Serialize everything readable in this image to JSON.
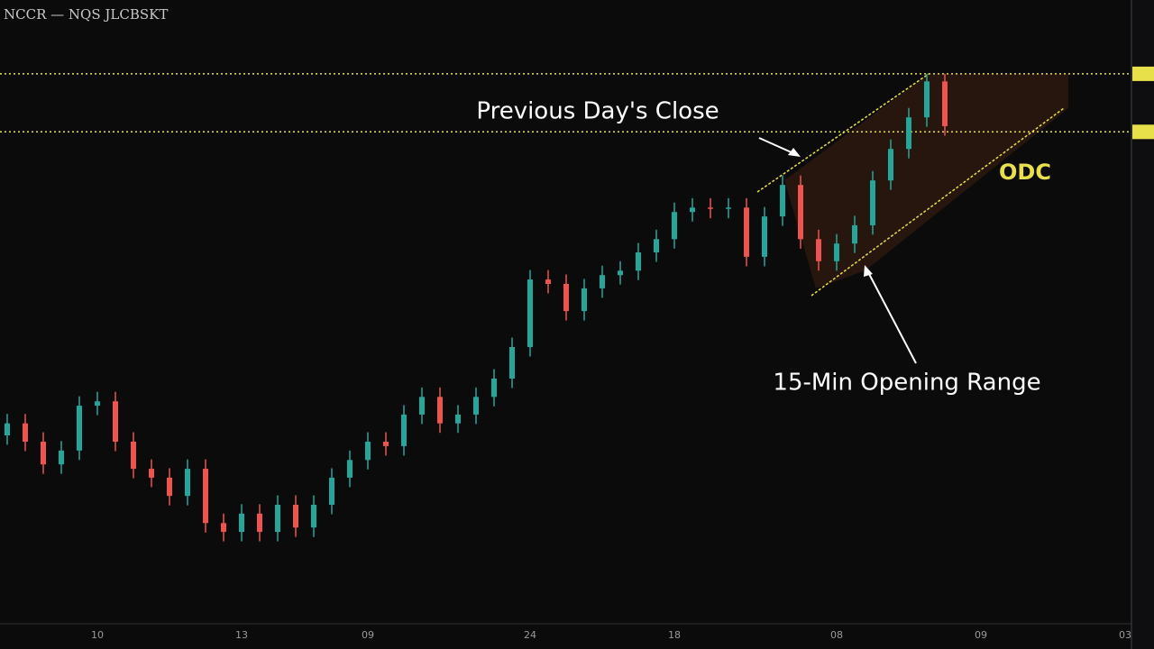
{
  "chart_data": {
    "type": "candlestick",
    "title": "NCCR — NQS JLCBSKT",
    "annotations": [
      "Previous Day's Close",
      "15-Min Opening Range",
      "ODC"
    ],
    "categories": [
      null,
      null,
      null,
      null,
      null,
      "10",
      null,
      null,
      null,
      null,
      null,
      null,
      null,
      "13",
      null,
      null,
      null,
      null,
      null,
      null,
      "09",
      null,
      null,
      null,
      null,
      null,
      null,
      null,
      null,
      "24",
      null,
      null,
      null,
      null,
      null,
      null,
      null,
      "18",
      null,
      null,
      null,
      null,
      null,
      null,
      null,
      null,
      "08",
      null,
      null,
      null,
      null,
      null,
      null,
      null,
      "09",
      null,
      null,
      null,
      null,
      null,
      null,
      null,
      "03"
    ],
    "open": [
      31.0,
      32.9,
      30.0,
      26.4,
      28.6,
      35.7,
      36.4,
      30.0,
      25.7,
      24.3,
      21.4,
      25.7,
      17.1,
      15.7,
      18.6,
      15.7,
      20.0,
      16.4,
      20.0,
      24.3,
      27.1,
      30.0,
      29.3,
      34.3,
      37.1,
      32.9,
      34.3,
      37.1,
      40.0,
      45.0,
      55.7,
      55.0,
      50.7,
      54.3,
      56.4,
      57.1,
      60.0,
      62.1,
      66.4,
      67.1,
      66.9,
      67.1,
      59.3,
      65.7,
      70.7,
      62.1,
      58.6,
      61.4,
      64.3,
      71.4,
      76.4,
      81.4,
      87.1,
      null,
      null,
      null,
      null,
      null,
      null,
      null,
      null,
      null,
      null
    ],
    "high": [
      34.4,
      34.4,
      31.5,
      30.1,
      37.2,
      37.9,
      37.9,
      31.5,
      27.2,
      25.8,
      27.2,
      27.2,
      18.6,
      20.1,
      20.1,
      21.5,
      21.5,
      21.5,
      25.8,
      28.6,
      31.5,
      31.5,
      35.8,
      38.6,
      38.6,
      35.8,
      38.6,
      41.5,
      46.5,
      57.2,
      57.2,
      56.5,
      55.8,
      57.9,
      58.6,
      61.5,
      63.6,
      67.9,
      68.6,
      68.6,
      68.6,
      68.6,
      67.2,
      72.2,
      72.2,
      63.6,
      62.9,
      65.8,
      72.9,
      77.9,
      82.9,
      88.3,
      88.3,
      null,
      null,
      null,
      null,
      null,
      null,
      null,
      null,
      null,
      null
    ],
    "low": [
      29.5,
      28.5,
      24.9,
      24.9,
      27.1,
      34.2,
      28.5,
      24.2,
      22.8,
      19.9,
      19.9,
      15.6,
      14.2,
      14.2,
      14.2,
      14.2,
      14.9,
      14.9,
      18.5,
      22.8,
      25.6,
      27.8,
      27.8,
      32.8,
      31.4,
      31.4,
      32.8,
      35.6,
      38.5,
      43.5,
      53.5,
      49.2,
      49.2,
      52.8,
      54.9,
      55.6,
      58.5,
      60.6,
      64.9,
      65.4,
      65.4,
      57.8,
      57.8,
      64.2,
      60.6,
      57.1,
      57.1,
      59.9,
      62.8,
      69.9,
      74.9,
      79.9,
      78.5,
      null,
      null,
      null,
      null,
      null,
      null,
      null,
      null,
      null,
      null
    ],
    "close": [
      32.9,
      30.0,
      26.4,
      28.6,
      35.7,
      36.4,
      30.0,
      25.7,
      24.3,
      21.4,
      25.7,
      17.1,
      15.7,
      18.6,
      15.7,
      20.0,
      16.4,
      20.0,
      24.3,
      27.1,
      30.0,
      29.3,
      34.3,
      37.1,
      32.9,
      34.3,
      37.1,
      40.0,
      45.0,
      55.7,
      55.0,
      50.7,
      54.3,
      56.4,
      57.1,
      60.0,
      62.1,
      66.4,
      67.1,
      66.9,
      67.1,
      59.3,
      65.7,
      70.7,
      62.1,
      58.6,
      61.4,
      64.3,
      71.4,
      76.4,
      81.4,
      87.1,
      80.0,
      null,
      null,
      null,
      null,
      null,
      null,
      null,
      null,
      null,
      null
    ],
    "up_color": "#26a69a",
    "down_color": "#ef5350",
    "hlines": [
      88.3,
      79.1
    ],
    "hline_color": "#e8e04a",
    "ylim": [
      0,
      100
    ]
  }
}
